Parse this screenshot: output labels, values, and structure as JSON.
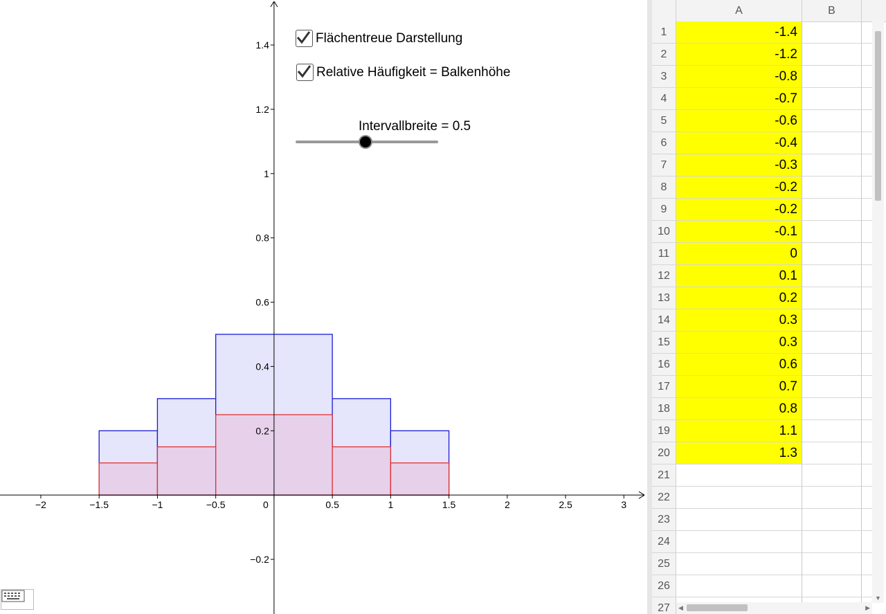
{
  "controls": {
    "checkbox_area": {
      "label": "Flächentreue Darstellung",
      "checked": true
    },
    "checkbox_relative": {
      "label": "Relative Häufigkeit = Balkenhöhe",
      "checked": true
    },
    "slider": {
      "label": "Intervallbreite = 0.5",
      "value": 0.5
    }
  },
  "chart_data": {
    "type": "bar",
    "xlim": [
      -2.35,
      3.2
    ],
    "ylim": [
      -0.37,
      1.54
    ],
    "x_ticks": [
      {
        "v": -2,
        "label": "−2"
      },
      {
        "v": -1.5,
        "label": "−1.5"
      },
      {
        "v": -1,
        "label": "−1"
      },
      {
        "v": -0.5,
        "label": "−0.5"
      },
      {
        "v": 0,
        "label": "0"
      },
      {
        "v": 0.5,
        "label": "0.5"
      },
      {
        "v": 1,
        "label": "1"
      },
      {
        "v": 1.5,
        "label": "1.5"
      },
      {
        "v": 2,
        "label": "2"
      },
      {
        "v": 2.5,
        "label": "2.5"
      },
      {
        "v": 3,
        "label": "3"
      }
    ],
    "y_ticks": [
      {
        "v": -0.2,
        "label": "−0.2"
      },
      {
        "v": 0.2,
        "label": "0.2"
      },
      {
        "v": 0.4,
        "label": "0.4"
      },
      {
        "v": 0.6,
        "label": "0.6"
      },
      {
        "v": 0.8,
        "label": "0.8"
      },
      {
        "v": 1,
        "label": "1"
      },
      {
        "v": 1.2,
        "label": "1.2"
      },
      {
        "v": 1.4,
        "label": "1.4"
      }
    ],
    "series": [
      {
        "bins": [
          [
            -1.5,
            -1
          ],
          [
            -1,
            -0.5
          ],
          [
            -0.5,
            0.5
          ],
          [
            0.5,
            1
          ],
          [
            1,
            1.5
          ]
        ],
        "values": [
          0.2,
          0.3,
          0.5,
          0.3,
          0.2
        ],
        "fill": "#e5e5fc",
        "stroke": "#1a1ad6"
      },
      {
        "bins": [
          [
            -1.5,
            -1
          ],
          [
            -1,
            -0.5
          ],
          [
            -0.5,
            0.5
          ],
          [
            0.5,
            1
          ],
          [
            1,
            1.5
          ]
        ],
        "values": [
          0.1,
          0.15,
          0.25,
          0.15,
          0.1
        ],
        "fill": "#e6cce6",
        "stroke": "#e03030"
      }
    ],
    "grid": false
  },
  "spreadsheet": {
    "columns": [
      "A",
      "B"
    ],
    "rows": [
      {
        "n": "1",
        "a": "-1.4"
      },
      {
        "n": "2",
        "a": "-1.2"
      },
      {
        "n": "3",
        "a": "-0.8"
      },
      {
        "n": "4",
        "a": "-0.7"
      },
      {
        "n": "5",
        "a": "-0.6"
      },
      {
        "n": "6",
        "a": "-0.4"
      },
      {
        "n": "7",
        "a": "-0.3"
      },
      {
        "n": "8",
        "a": "-0.2"
      },
      {
        "n": "9",
        "a": "-0.2"
      },
      {
        "n": "10",
        "a": "-0.1"
      },
      {
        "n": "11",
        "a": "0"
      },
      {
        "n": "12",
        "a": "0.1"
      },
      {
        "n": "13",
        "a": "0.2"
      },
      {
        "n": "14",
        "a": "0.3"
      },
      {
        "n": "15",
        "a": "0.3"
      },
      {
        "n": "16",
        "a": "0.6"
      },
      {
        "n": "17",
        "a": "0.7"
      },
      {
        "n": "18",
        "a": "0.8"
      },
      {
        "n": "19",
        "a": "1.1"
      },
      {
        "n": "20",
        "a": "1.3"
      },
      {
        "n": "21",
        "a": ""
      },
      {
        "n": "22",
        "a": ""
      },
      {
        "n": "23",
        "a": ""
      },
      {
        "n": "24",
        "a": ""
      },
      {
        "n": "25",
        "a": ""
      },
      {
        "n": "26",
        "a": ""
      },
      {
        "n": "27",
        "a": ""
      }
    ],
    "fill_color": "#ffff00"
  }
}
